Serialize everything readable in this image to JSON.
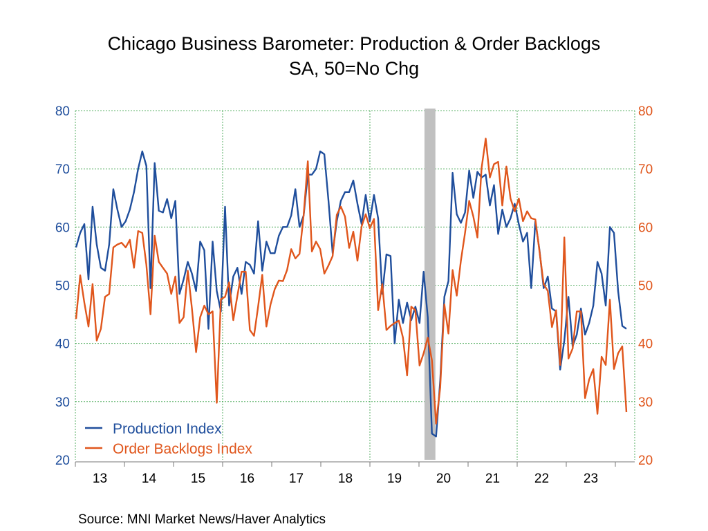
{
  "chart_data": {
    "type": "line",
    "title": "Chicago Business Barometer: Production & Order Backlogs",
    "subtitle": "SA, 50=No Chg",
    "source": "Source:  MNI Market News/Haver Analytics",
    "x_start": "2013-01",
    "x_frequency": "monthly",
    "x_tick_labels": [
      "13",
      "14",
      "15",
      "16",
      "17",
      "18",
      "19",
      "20",
      "21",
      "22",
      "23"
    ],
    "y_left": {
      "range": [
        20,
        80
      ],
      "ticks": [
        "20",
        "30",
        "40",
        "50",
        "60",
        "70",
        "80"
      ],
      "color": "#1f4e9c"
    },
    "y_right": {
      "range": [
        20,
        80
      ],
      "ticks": [
        "20",
        "30",
        "40",
        "50",
        "60",
        "70",
        "80"
      ],
      "color": "#e0561c"
    },
    "grid": true,
    "legend_position": "bottom-left",
    "recession_shading": {
      "start": "2020-02",
      "end": "2020-04",
      "color": "#c0c0c0"
    },
    "series": [
      {
        "name": "Production Index",
        "color": "#1f4e9c",
        "axis": "left",
        "values": [
          56.5,
          59,
          60.5,
          51,
          63.5,
          57,
          53,
          52.5,
          57,
          66.5,
          63,
          60,
          61,
          63,
          66,
          70,
          73,
          70.5,
          49.5,
          71,
          62.8,
          62.5,
          64.8,
          61.5,
          64.5,
          48.5,
          51,
          54,
          52,
          49,
          57.5,
          56,
          42.5,
          57.5,
          49,
          45.5,
          63.5,
          46.5,
          51.5,
          53,
          48.5,
          54,
          53.5,
          52,
          61,
          52.5,
          57.5,
          55.5,
          55.5,
          58.5,
          60,
          60,
          62,
          66.5,
          60,
          62,
          69,
          69,
          70,
          73,
          72.5,
          64.5,
          55.5,
          61,
          64.5,
          66,
          66,
          68,
          64,
          60.5,
          65.5,
          61,
          65.5,
          61.5,
          48.5,
          55.3,
          55,
          40,
          47.5,
          43.5,
          47,
          44,
          46.3,
          43.5,
          52.3,
          44.5,
          24.5,
          24,
          33.6,
          48,
          50.7,
          69.3,
          62.2,
          60.7,
          62.5,
          69.7,
          65,
          69.5,
          68.5,
          69,
          63.7,
          67.2,
          58.8,
          63,
          60,
          61.5,
          64,
          60.5,
          57.5,
          59,
          49.5,
          61,
          56,
          49.5,
          51.5,
          46,
          45.5,
          35.5,
          40.5,
          48,
          39.5,
          41.5,
          46,
          41.5,
          43.5,
          46.5,
          54,
          52,
          46.5,
          60,
          59,
          49,
          43,
          42.5
        ]
      },
      {
        "name": "Order Backlogs Index",
        "color": "#e0561c",
        "axis": "right",
        "values": [
          44.2,
          51.7,
          47,
          42.9,
          50.2,
          40.5,
          42.5,
          48,
          48.5,
          56.5,
          57,
          57.3,
          56.5,
          57.8,
          53,
          59.3,
          59,
          53.5,
          45,
          58.5,
          54,
          53,
          52,
          48.5,
          51.5,
          43.5,
          44.5,
          52.5,
          46,
          38.5,
          44.5,
          46.5,
          45,
          45.5,
          29.8,
          47.6,
          48,
          50.5,
          44,
          48.2,
          52.3,
          52.3,
          42.3,
          41.3,
          46.3,
          51.8,
          42.9,
          46.7,
          49.3,
          50.8,
          50.7,
          52.6,
          56.2,
          54.6,
          55.4,
          62.1,
          71.3,
          55.8,
          57.5,
          56.2,
          52,
          53.4,
          55,
          62.1,
          63.5,
          61.8,
          56.4,
          59.2,
          54.2,
          60.1,
          62.2,
          59.8,
          61.4,
          45.7,
          50.2,
          42.3,
          43,
          43.5,
          43.9,
          41,
          34.5,
          46.3,
          45.7,
          36.2,
          38.3,
          41,
          37.1,
          26.2,
          32.4,
          46.7,
          41.7,
          52.6,
          48.2,
          54.2,
          59,
          64.5,
          61.8,
          58.2,
          70.1,
          75.2,
          68.5,
          70.8,
          71.2,
          63.7,
          70.4,
          64.9,
          62.7,
          64.9,
          61,
          62.7,
          61.5,
          61.3,
          55.8,
          50.2,
          49,
          42.8,
          45.7,
          36.3,
          58.2,
          37.4,
          39.1,
          45.5,
          45.5,
          30.6,
          33.8,
          35.6,
          27.9,
          37.7,
          36.3,
          47.5,
          35.6,
          38.3,
          39.5,
          28.2
        ]
      }
    ]
  }
}
